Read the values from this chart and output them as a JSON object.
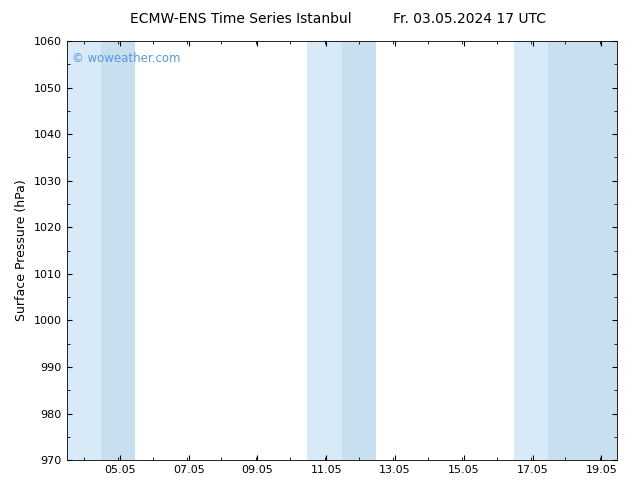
{
  "title_left": "ECMW-ENS Time Series Istanbul",
  "title_right": "Fr. 03.05.2024 17 UTC",
  "ylabel": "Surface Pressure (hPa)",
  "ylim": [
    970,
    1060
  ],
  "yticks": [
    970,
    980,
    990,
    1000,
    1010,
    1020,
    1030,
    1040,
    1050,
    1060
  ],
  "xlim": [
    3.5,
    19.5
  ],
  "xtick_positions": [
    5.05,
    7.05,
    9.05,
    11.05,
    13.05,
    15.05,
    17.05,
    19.05
  ],
  "xtick_labels": [
    "05.05",
    "07.05",
    "09.05",
    "11.05",
    "13.05",
    "15.05",
    "17.05",
    "19.05"
  ],
  "watermark": "© woweather.com",
  "watermark_color": "#5599dd",
  "bg_color": "#ffffff",
  "plot_bg_color": "#ffffff",
  "shaded_bands": [
    {
      "xmin": 3.5,
      "xmax": 4.5,
      "color": "#d8eaf7"
    },
    {
      "xmin": 4.5,
      "xmax": 5.5,
      "color": "#c8dff0"
    },
    {
      "xmin": 10.5,
      "xmax": 11.5,
      "color": "#d8eaf7"
    },
    {
      "xmin": 11.5,
      "xmax": 12.5,
      "color": "#c8dff0"
    },
    {
      "xmin": 16.5,
      "xmax": 17.5,
      "color": "#d8eaf7"
    },
    {
      "xmin": 17.5,
      "xmax": 19.5,
      "color": "#c8dff0"
    }
  ],
  "title_fontsize": 10,
  "tick_fontsize": 8,
  "ylabel_fontsize": 9
}
